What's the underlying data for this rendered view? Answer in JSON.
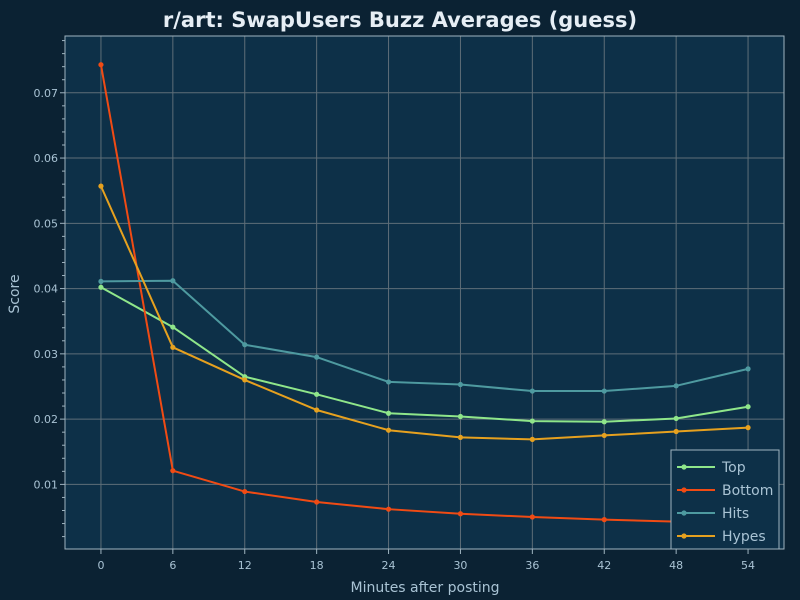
{
  "chart_data": {
    "type": "line",
    "title": "r/art: SwapUsers Buzz Averages (guess)",
    "xlabel": "Minutes after posting",
    "ylabel": "Score",
    "x": [
      0,
      6,
      12,
      18,
      24,
      30,
      36,
      42,
      48,
      54
    ],
    "xticks": [
      "0",
      "6",
      "12",
      "18",
      "24",
      "30",
      "36",
      "42",
      "48",
      "54"
    ],
    "xlim": [
      -3,
      57
    ],
    "yticks": [
      0.01,
      0.02,
      0.03,
      0.04,
      0.05,
      0.06,
      0.07
    ],
    "ytick_labels": [
      "0.01",
      "0.02",
      "0.03",
      "0.04",
      "0.05",
      "0.06",
      "0.07"
    ],
    "ylim": [
      0.0001,
      0.0787
    ],
    "grid": true,
    "legend_position": "bottom-right",
    "series": [
      {
        "name": "Top",
        "color": "#8fe68a",
        "values": [
          0.0402,
          0.0341,
          0.0265,
          0.0238,
          0.0209,
          0.0204,
          0.0197,
          0.0196,
          0.0201,
          0.0219
        ]
      },
      {
        "name": "Bottom",
        "color": "#f04b14",
        "values": [
          0.0743,
          0.0121,
          0.0089,
          0.0073,
          0.0062,
          0.0055,
          0.005,
          0.0046,
          0.0043,
          0.004
        ]
      },
      {
        "name": "Hits",
        "color": "#4e9aa0",
        "values": [
          0.0411,
          0.0412,
          0.0314,
          0.0295,
          0.0257,
          0.0253,
          0.0243,
          0.0243,
          0.0251,
          0.0277
        ]
      },
      {
        "name": "Hypes",
        "color": "#e6a11f",
        "values": [
          0.0557,
          0.031,
          0.026,
          0.0214,
          0.0183,
          0.0172,
          0.0169,
          0.0175,
          0.0181,
          0.0187
        ]
      }
    ]
  },
  "colors": {
    "background": "#0b2233",
    "plot_area": "#0d3048",
    "grid": "#5e6e78",
    "frame": "#9fb4c0",
    "text": "#a9c3d4",
    "title": "#e6eef5"
  }
}
